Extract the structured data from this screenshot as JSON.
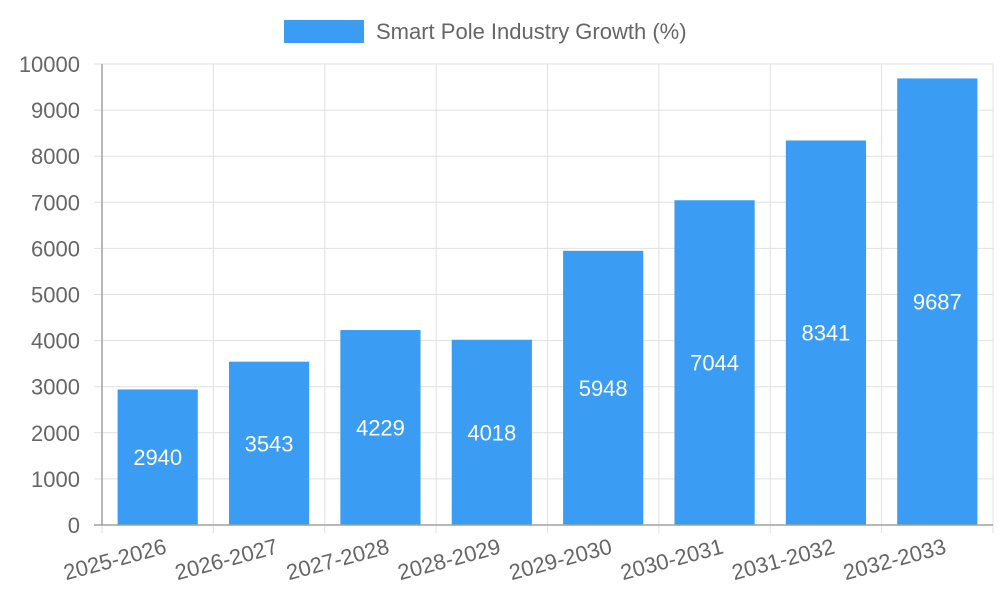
{
  "chart_data": {
    "type": "bar",
    "categories": [
      "2025-2026",
      "2026-2027",
      "2027-2028",
      "2028-2029",
      "2029-2030",
      "2030-2031",
      "2031-2032",
      "2032-2033"
    ],
    "series": [
      {
        "name": "Smart Pole Industry Growth (%)",
        "values": [
          2940,
          3543,
          4229,
          4018,
          5948,
          7044,
          8341,
          9687
        ]
      }
    ],
    "title": "",
    "xlabel": "",
    "ylabel": "",
    "ylim": [
      0,
      10000
    ],
    "yticks": [
      0,
      1000,
      2000,
      3000,
      4000,
      5000,
      6000,
      7000,
      8000,
      9000,
      10000
    ],
    "grid": true,
    "legend_position": "top-center",
    "data_labels": true
  },
  "colors": {
    "bar": "#3a9cf2",
    "grid": "#e0e0e0",
    "axis": "#a0a0a0",
    "text": "#666666",
    "data_label": "#ffffff"
  }
}
